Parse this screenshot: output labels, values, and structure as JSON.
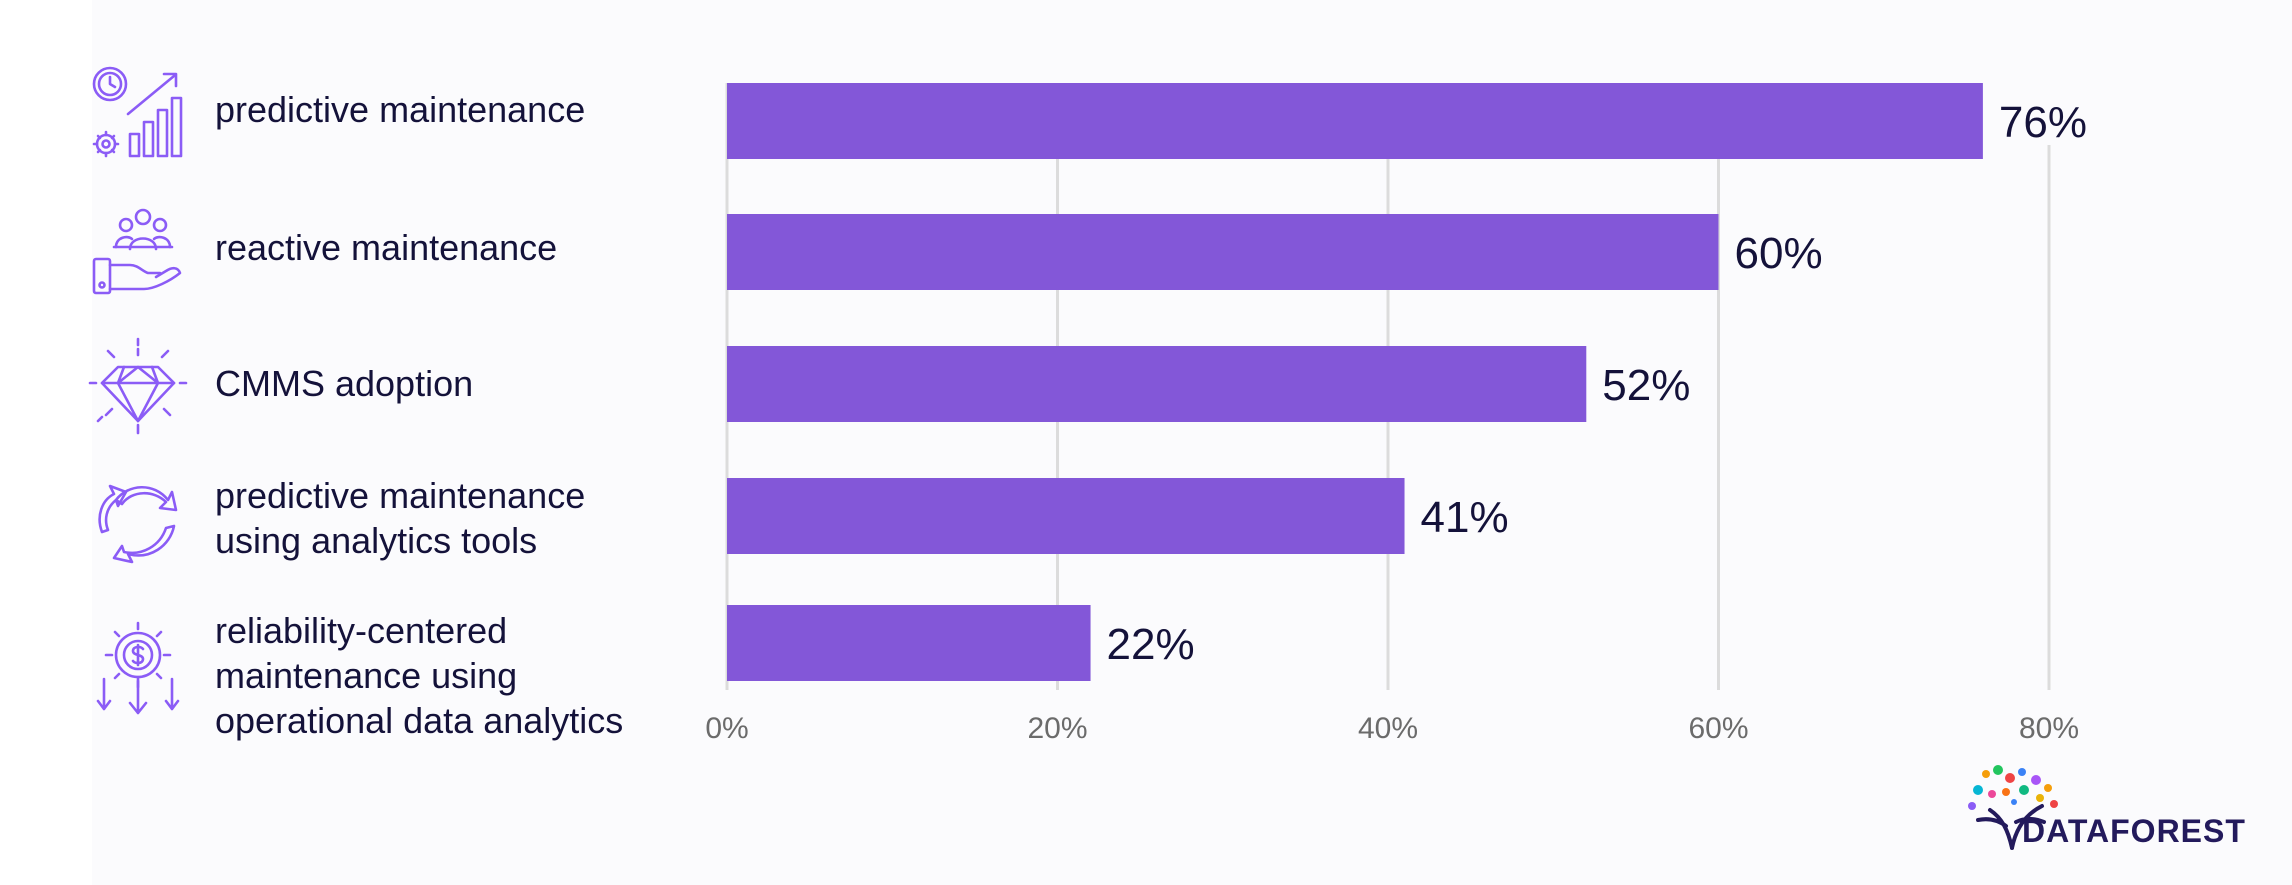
{
  "chart_data": {
    "type": "bar",
    "orientation": "horizontal",
    "categories": [
      "predictive maintenance",
      "reactive maintenance",
      "CMMS adoption",
      "predictive maintenance using analytics tools",
      "reliability-centered maintenance using operational data analytics"
    ],
    "category_lines": [
      [
        "predictive maintenance"
      ],
      [
        "reactive maintenance"
      ],
      [
        "CMMS adoption"
      ],
      [
        "predictive maintenance",
        "using analytics tools"
      ],
      [
        "reliability-centered",
        "maintenance using",
        "operational data analytics"
      ]
    ],
    "values": [
      76,
      60,
      52,
      41,
      22
    ],
    "value_labels": [
      "76%",
      "60%",
      "52%",
      "41%",
      "22%"
    ],
    "xlim": [
      0,
      80
    ],
    "ticks": [
      0,
      20,
      40,
      60,
      80
    ],
    "tick_labels": [
      "0%",
      "20%",
      "40%",
      "60%",
      "80%"
    ],
    "grid": true,
    "title": "",
    "xlabel": "",
    "ylabel": ""
  },
  "icons": [
    "growth-clock-gear-icon",
    "people-hand-icon",
    "diamond-icon",
    "cycle-arrows-icon",
    "gear-dollar-icon"
  ],
  "colors": {
    "bar": "#8357d8",
    "label": "#14123a",
    "grid": "#dcdcdc",
    "tick": "#6b6b6b",
    "icon": "#8b5cf6"
  },
  "brand": {
    "name": "DATAFOREST"
  }
}
